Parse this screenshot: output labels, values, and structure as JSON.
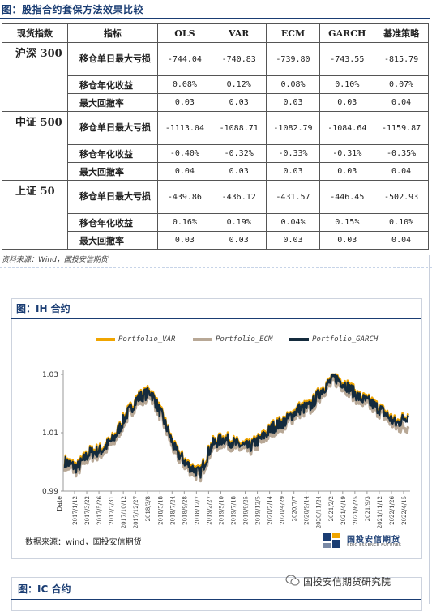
{
  "top_title": "图：股指合约套保方法效果比较",
  "table": {
    "headers": [
      "现货指数",
      "指标",
      "OLS",
      "VAR",
      "ECM",
      "GARCH",
      "基准策略"
    ],
    "groups": [
      {
        "index": "沪深 300",
        "rows": [
          {
            "metric": "移仓单日最大亏损",
            "vals": [
              "-744.04",
              "-740.83",
              "-739.80",
              "-743.55",
              "-815.79"
            ]
          },
          {
            "metric": "移仓年化收益",
            "vals": [
              "0.08%",
              "0.12%",
              "0.08%",
              "0.10%",
              "0.07%"
            ]
          },
          {
            "metric": "最大回撤率",
            "vals": [
              "0.03",
              "0.03",
              "0.03",
              "0.03",
              "0.04"
            ]
          }
        ]
      },
      {
        "index": "中证 500",
        "rows": [
          {
            "metric": "移仓单日最大亏损",
            "vals": [
              "-1113.04",
              "-1088.71",
              "-1082.79",
              "-1084.64",
              "-1159.87"
            ]
          },
          {
            "metric": "移仓年化收益",
            "vals": [
              "-0.40%",
              "-0.32%",
              "-0.33%",
              "-0.31%",
              "-0.35%"
            ]
          },
          {
            "metric": "最大回撤率",
            "vals": [
              "0.04",
              "0.03",
              "0.03",
              "0.03",
              "0.04"
            ]
          }
        ]
      },
      {
        "index": "上证 50",
        "rows": [
          {
            "metric": "移仓单日最大亏损",
            "vals": [
              "-439.86",
              "-436.12",
              "-431.57",
              "-446.45",
              "-502.93"
            ]
          },
          {
            "metric": "移仓年化收益",
            "vals": [
              "0.16%",
              "0.19%",
              "0.04%",
              "0.15%",
              "0.10%"
            ]
          },
          {
            "metric": "最大回撤率",
            "vals": [
              "0.03",
              "0.03",
              "0.03",
              "0.03",
              "0.04"
            ]
          }
        ]
      }
    ]
  },
  "table_source": "资料来源：Wind，国投安信期货",
  "chart_panel_title": "图：IH 合约",
  "chart_source": "数据来源：wind，国投安信期货",
  "logo": {
    "cn": "国投安信期货",
    "en": "SDIC ESSENCE FUTURES"
  },
  "next_panel_title": "图：IC 合约",
  "watermark": "国投安信期货研究院",
  "chart_data": {
    "type": "line",
    "xlabel": "Date",
    "ylabel": "",
    "ylim": [
      0.99,
      1.03
    ],
    "yticks": [
      "0.99",
      "1.01",
      "1.03"
    ],
    "x_ticks": [
      "2017/1/12",
      "2017/3/22",
      "2017/5/26",
      "2017/7/31",
      "2017/10/12",
      "2017/12/27",
      "2018/3/8",
      "2018/5/18",
      "2018/7/24",
      "2018/9/28",
      "2018/12/7",
      "2019/2/27",
      "2019/5/10",
      "2019/7/18",
      "2019/9/25",
      "2019/12/5",
      "2020/2/14",
      "2020/4/29",
      "2020/7/7",
      "2020/9/14",
      "2020/11/24",
      "2021/2/2",
      "2021/4/19",
      "2021/6/25",
      "2021/9/3",
      "2021/11/12",
      "2022/1/26",
      "2022/4/15"
    ],
    "x_tick_text": [
      "2017/1/12",
      "2017/3/22",
      "2017/5/26",
      "2017/7/31",
      "2017/10/12",
      "2017/12/27",
      "2018/3/8",
      "2018/5/18",
      "2018/7/24",
      "2018/9/28",
      "2018/12/7",
      "2019/2/27",
      "2019/5/10",
      "2019/7/18",
      "2019/9/25",
      "2019/12/5",
      "2020/2/14",
      "2020/4/29",
      "2020/7/7",
      "2020/9/14",
      "2020/11/24",
      "2021/2/2",
      "2021/4/19",
      "2021/6/25",
      "2021/9/3",
      "2021/11/12",
      "2022/1/26",
      "2022/4/15"
    ],
    "series": [
      {
        "name": "Portfolio_VAR",
        "color": "#f0a500"
      },
      {
        "name": "Portfolio_ECM",
        "color": "#b8a896"
      },
      {
        "name": "Portfolio_GARCH",
        "color": "#142b3d"
      }
    ],
    "key_values": [
      1.0,
      0.998,
      1.003,
      1.004,
      1.008,
      1.016,
      1.022,
      1.024,
      1.015,
      1.004,
      0.999,
      0.996,
      1.006,
      1.008,
      1.006,
      1.005,
      1.008,
      1.012,
      1.014,
      1.018,
      1.019,
      1.025,
      1.029,
      1.026,
      1.022,
      1.02,
      1.017,
      1.013,
      1.016
    ],
    "grid": false,
    "legend": "top"
  }
}
